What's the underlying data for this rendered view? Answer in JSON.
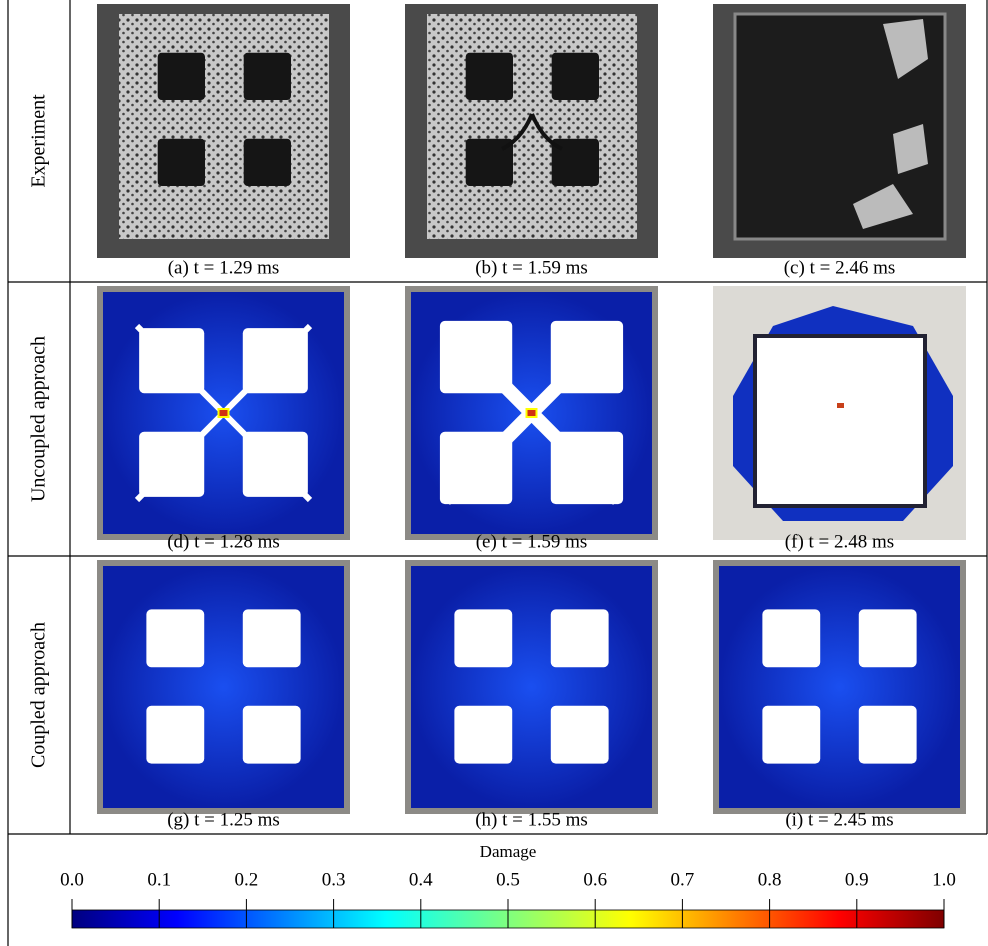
{
  "rows": [
    {
      "label": "Experiment",
      "panels": [
        {
          "caption": "(a) t = 1.29 ms"
        },
        {
          "caption": "(b) t = 1.59 ms"
        },
        {
          "caption": "(c) t = 2.46 ms"
        }
      ]
    },
    {
      "label": "Uncoupled approach",
      "panels": [
        {
          "caption": "(d) t = 1.28 ms"
        },
        {
          "caption": "(e) t = 1.59 ms"
        },
        {
          "caption": "(f) t = 2.48 ms"
        }
      ]
    },
    {
      "label": "Coupled approach",
      "panels": [
        {
          "caption": "(g) t = 1.25 ms"
        },
        {
          "caption": "(h) t = 1.55 ms"
        },
        {
          "caption": "(i) t = 2.45 ms"
        }
      ]
    }
  ],
  "colorbar": {
    "title": "Damage",
    "range": [
      0,
      1
    ],
    "ticks": [
      {
        "value": 0,
        "label": "0.0"
      },
      {
        "value": 0.1,
        "label": "0.1"
      },
      {
        "value": 0.2,
        "label": "0.2"
      },
      {
        "value": 0.3,
        "label": "0.3"
      },
      {
        "value": 0.4,
        "label": "0.4"
      },
      {
        "value": 0.5,
        "label": "0.5"
      },
      {
        "value": 0.6,
        "label": "0.6"
      },
      {
        "value": 0.7,
        "label": "0.7"
      },
      {
        "value": 0.8,
        "label": "0.8"
      },
      {
        "value": 0.9,
        "label": "0.9"
      },
      {
        "value": 1,
        "label": "1.0"
      }
    ]
  }
}
